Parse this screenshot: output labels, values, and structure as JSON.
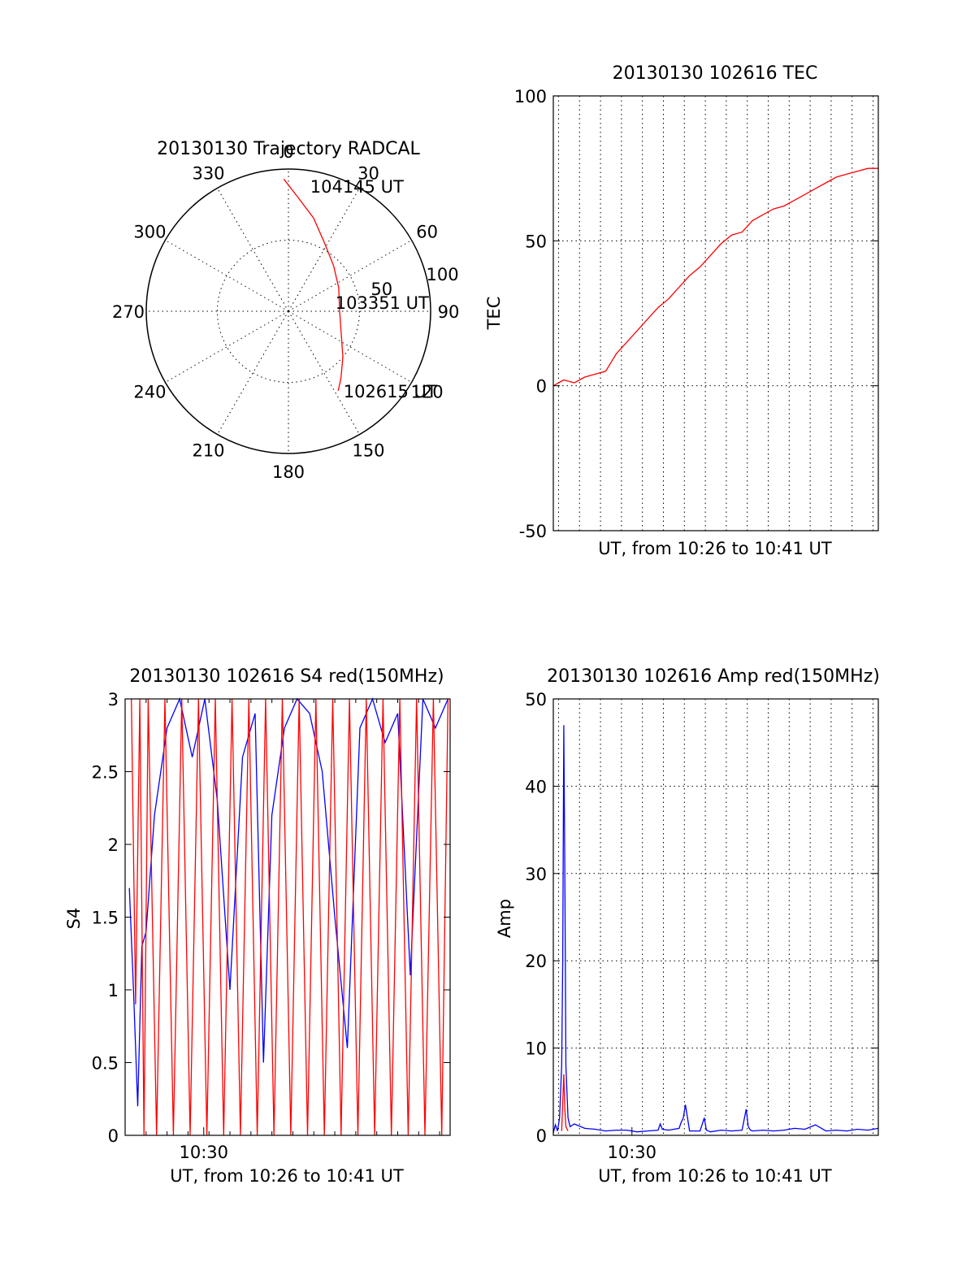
{
  "chart_data": [
    {
      "type": "polar",
      "title": "20130130 Trajectory RADCAL",
      "angle_labels": [
        "0",
        "30",
        "60",
        "90",
        "120",
        "150",
        "180",
        "210",
        "240",
        "270",
        "300",
        "330"
      ],
      "radial_labels": [
        "50",
        "100"
      ],
      "rlim": [
        0,
        100
      ],
      "track_color": "#ff0000",
      "trajectory": [
        {
          "az": 358.0,
          "el": 93.0,
          "label": ""
        },
        {
          "az": 5.0,
          "el": 80.0,
          "label": ""
        },
        {
          "az": 15.0,
          "el": 68.0,
          "label": ""
        },
        {
          "az": 27.0,
          "el": 55.0,
          "label": ""
        },
        {
          "az": 45.0,
          "el": 45.0,
          "label": ""
        },
        {
          "az": 65.0,
          "el": 39.0,
          "label": ""
        },
        {
          "az": 90.0,
          "el": 36.0,
          "label": ""
        },
        {
          "az": 112.0,
          "el": 40.0,
          "label": ""
        },
        {
          "az": 130.0,
          "el": 50.0,
          "label": ""
        },
        {
          "az": 142.0,
          "el": 60.0,
          "label": ""
        },
        {
          "az": 148.0,
          "el": 66.0,
          "label": ""
        }
      ],
      "annotations": [
        {
          "text": "104145 UT",
          "az": 12.0,
          "el": 90.0
        },
        {
          "text": "103351 UT",
          "az": 80.0,
          "el": 37.0
        },
        {
          "text": "102615 UT",
          "az": 143.0,
          "el": 70.0
        }
      ]
    },
    {
      "type": "line",
      "title": "20130130 102616 TEC",
      "xlabel": "UT, from 10:26 to 10:41 UT",
      "ylabel": "TEC",
      "xlim": [
        0,
        15.5
      ],
      "ylim": [
        -50,
        100
      ],
      "yticks": [
        -50,
        0,
        50,
        100
      ],
      "xgrid_minutes": [
        0.25,
        1.25,
        2.25,
        3.25,
        4.25,
        5.25,
        6.25,
        7.25,
        8.25,
        9.25,
        10.25,
        11.25,
        12.25,
        13.25,
        14.25,
        15.25
      ],
      "series": [
        {
          "color": "#ff0000",
          "x": [
            0,
            0.5,
            1,
            1.5,
            2,
            2.5,
            3,
            3.5,
            4,
            4.5,
            5,
            5.5,
            6,
            6.5,
            7,
            7.5,
            8,
            8.5,
            9,
            9.5,
            10,
            10.5,
            11,
            11.5,
            12,
            12.5,
            13,
            13.5,
            14,
            14.5,
            15,
            15.5
          ],
          "values": [
            0,
            2,
            1,
            3,
            4,
            5,
            11,
            15,
            19,
            23,
            27,
            30,
            34,
            38,
            41,
            45,
            49,
            52,
            53,
            57,
            59,
            61,
            62,
            64,
            66,
            68,
            70,
            72,
            73,
            74,
            75,
            75
          ]
        }
      ]
    },
    {
      "type": "line",
      "title": "20130130 102616 S4 red(150MHz)",
      "xlabel": "UT, from 10:26 to 10:41 UT",
      "ylabel": "S4",
      "xlim": [
        0,
        15.5
      ],
      "ylim": [
        0,
        3
      ],
      "yticks": [
        0,
        0.5,
        1,
        1.5,
        2,
        2.5,
        3
      ],
      "xticks": [
        {
          "value": 3.75,
          "label": "10:30"
        }
      ],
      "minor_xticks": [
        1,
        2,
        3,
        4,
        5,
        6,
        7,
        8,
        9,
        10,
        11,
        12,
        13,
        14,
        15
      ],
      "series": [
        {
          "color": "#0000ff",
          "x": [
            0.2,
            0.4,
            0.6,
            0.8,
            1.0,
            1.4,
            2.0,
            2.6,
            3.2,
            3.8,
            4.4,
            5.0,
            5.6,
            6.2,
            6.6,
            7.0,
            7.6,
            8.2,
            8.8,
            9.4,
            10.0,
            10.6,
            11.2,
            11.8,
            12.4,
            13.0,
            13.6,
            14.2,
            14.8,
            15.4
          ],
          "values": [
            1.7,
            1.0,
            0.2,
            1.3,
            1.4,
            2.2,
            2.8,
            3.0,
            2.6,
            3.0,
            2.3,
            1.0,
            2.6,
            2.9,
            0.5,
            2.2,
            2.8,
            3.0,
            2.9,
            2.5,
            1.5,
            0.6,
            2.8,
            3.0,
            2.7,
            2.9,
            1.1,
            3.0,
            2.8,
            3.0
          ]
        },
        {
          "color": "#ff0000",
          "x": [
            0.3,
            0.5,
            0.7,
            0.9,
            1.1,
            1.5,
            1.9,
            2.3,
            2.7,
            3.1,
            3.5,
            3.9,
            4.3,
            4.7,
            5.1,
            5.5,
            5.9,
            6.3,
            6.7,
            7.1,
            7.5,
            7.9,
            8.3,
            8.7,
            9.1,
            9.5,
            9.9,
            10.3,
            10.7,
            11.1,
            11.5,
            11.9,
            12.3,
            12.7,
            13.1,
            13.5,
            13.9,
            14.3,
            14.7,
            15.1,
            15.4
          ],
          "values": [
            3.0,
            0.9,
            3.0,
            0.0,
            3.0,
            0.0,
            3.0,
            0.0,
            3.0,
            0.0,
            3.0,
            0.0,
            3.0,
            0.0,
            3.0,
            0.0,
            3.0,
            0.0,
            3.0,
            0.0,
            3.0,
            0.0,
            3.0,
            0.0,
            3.0,
            0.0,
            3.0,
            0.0,
            3.0,
            0.0,
            3.0,
            0.0,
            3.0,
            0.0,
            3.0,
            0.0,
            3.0,
            0.0,
            3.0,
            0.0,
            3.0
          ]
        }
      ]
    },
    {
      "type": "line",
      "title": "20130130 102616 Amp red(150MHz)",
      "xlabel": "UT, from 10:26 to 10:41 UT",
      "ylabel": "Amp",
      "xlim": [
        0,
        15.5
      ],
      "ylim": [
        0,
        50
      ],
      "yticks": [
        0,
        10,
        20,
        30,
        40,
        50
      ],
      "xticks": [
        {
          "value": 3.75,
          "label": "10:30"
        }
      ],
      "xgrid_minutes": [
        0.25,
        1.25,
        2.25,
        3.25,
        4.25,
        5.25,
        6.25,
        7.25,
        8.25,
        9.25,
        10.25,
        11.25,
        12.25,
        13.25,
        14.25,
        15.25
      ],
      "series": [
        {
          "color": "#0000ff",
          "x": [
            0,
            0.1,
            0.2,
            0.3,
            0.4,
            0.45,
            0.5,
            0.55,
            0.6,
            0.7,
            0.8,
            1.0,
            1.5,
            2.0,
            2.5,
            3.0,
            3.5,
            4.0,
            4.5,
            5.0,
            5.1,
            5.2,
            5.5,
            6.0,
            6.1,
            6.2,
            6.3,
            6.4,
            6.5,
            7.0,
            7.2,
            7.3,
            7.5,
            8.0,
            8.5,
            9.0,
            9.2,
            9.3,
            9.4,
            9.5,
            10.0,
            10.5,
            11.0,
            11.5,
            12.0,
            12.5,
            13.0,
            13.5,
            14.0,
            14.5,
            15.0,
            15.5
          ],
          "values": [
            0.3,
            1.2,
            0.5,
            2.0,
            8.0,
            20.0,
            47.0,
            30.0,
            8.0,
            2.0,
            1.0,
            1.3,
            0.8,
            0.7,
            0.5,
            0.6,
            0.6,
            0.4,
            0.5,
            0.6,
            1.3,
            0.7,
            0.6,
            0.8,
            1.5,
            2.0,
            3.5,
            2.0,
            0.5,
            0.5,
            2.0,
            0.6,
            0.4,
            0.6,
            0.5,
            0.6,
            3.0,
            1.0,
            0.6,
            0.5,
            0.6,
            0.5,
            0.6,
            0.8,
            0.7,
            1.2,
            0.5,
            0.6,
            0.5,
            0.7,
            0.6,
            0.8
          ]
        },
        {
          "color": "#ff0000",
          "x": [
            0.4,
            0.5,
            0.55,
            0.6,
            0.7
          ],
          "values": [
            0.5,
            7.0,
            3.0,
            1.0,
            0.5
          ]
        }
      ]
    }
  ]
}
